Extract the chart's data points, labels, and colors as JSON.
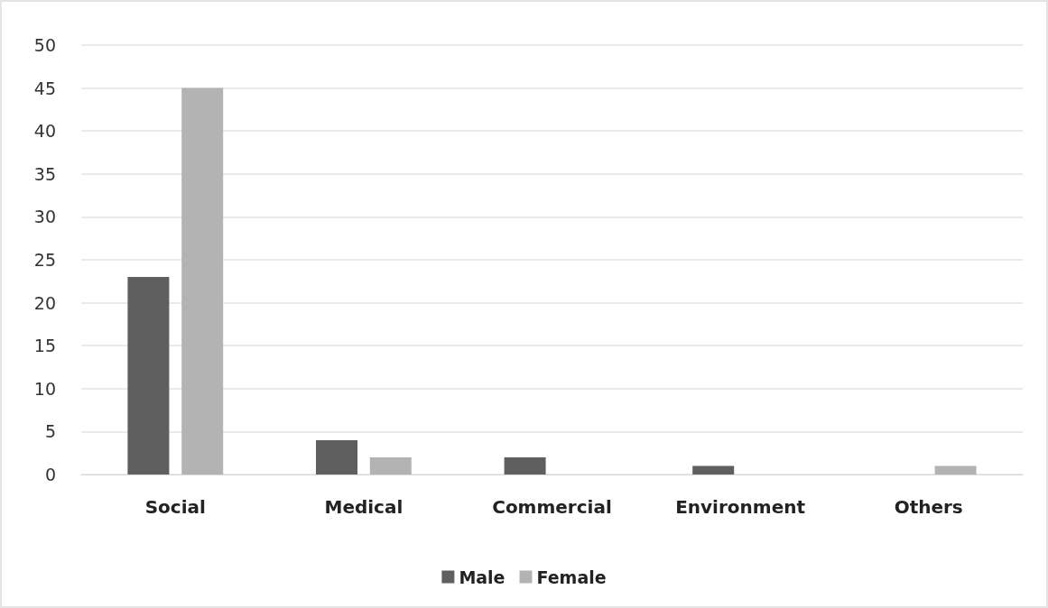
{
  "chart_data": {
    "type": "bar",
    "categories": [
      "Social",
      "Medical",
      "Commercial",
      "Environment",
      "Others"
    ],
    "series": [
      {
        "name": "Male",
        "color": "#5f5f5f",
        "values": [
          23,
          4,
          2,
          1,
          0
        ]
      },
      {
        "name": "Female",
        "color": "#b3b3b3",
        "values": [
          45,
          2,
          0,
          0,
          1
        ]
      }
    ],
    "ylim": [
      0,
      50
    ],
    "yticks": [
      0,
      5,
      10,
      15,
      20,
      25,
      30,
      35,
      40,
      45,
      50
    ],
    "grid": "y",
    "legend": "bottom"
  }
}
